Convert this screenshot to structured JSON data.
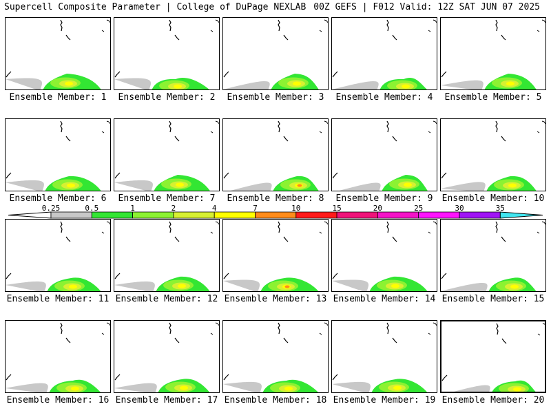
{
  "header": {
    "left": "Supercell Composite Parameter | College of DuPage NEXLAB",
    "right": "00Z GEFS | F012 Valid: 12Z SAT JUN 07 2025"
  },
  "colorbar": {
    "labels": [
      "0.25",
      "0.5",
      "1",
      "2",
      "4",
      "7",
      "10",
      "15",
      "20",
      "25",
      "30",
      "35"
    ],
    "colors": [
      "#c8c8c8",
      "#33e633",
      "#8cf232",
      "#d7f032",
      "#ffff00",
      "#ff8c1a",
      "#ff1a1a",
      "#f0147a",
      "#f514c8",
      "#ff14ff",
      "#a014f5",
      "#b45ae6",
      "#40e6f0"
    ]
  },
  "members": [
    {
      "label": "Ensemble Member: 1",
      "hot": false,
      "selected": false
    },
    {
      "label": "Ensemble Member: 2",
      "hot": false,
      "selected": false
    },
    {
      "label": "Ensemble Member: 3",
      "hot": false,
      "selected": false
    },
    {
      "label": "Ensemble Member: 4",
      "hot": false,
      "selected": false
    },
    {
      "label": "Ensemble Member: 5",
      "hot": false,
      "selected": false
    },
    {
      "label": "Ensemble Member: 6",
      "hot": false,
      "selected": false
    },
    {
      "label": "Ensemble Member: 7",
      "hot": false,
      "selected": false
    },
    {
      "label": "Ensemble Member: 8",
      "hot": true,
      "selected": false
    },
    {
      "label": "Ensemble Member: 9",
      "hot": false,
      "selected": false
    },
    {
      "label": "Ensemble Member: 10",
      "hot": false,
      "selected": false
    },
    {
      "label": "Ensemble Member: 11",
      "hot": false,
      "selected": false
    },
    {
      "label": "Ensemble Member: 12",
      "hot": false,
      "selected": false
    },
    {
      "label": "Ensemble Member: 13",
      "hot": true,
      "selected": false
    },
    {
      "label": "Ensemble Member: 14",
      "hot": false,
      "selected": false
    },
    {
      "label": "Ensemble Member: 15",
      "hot": false,
      "selected": false
    },
    {
      "label": "Ensemble Member: 16",
      "hot": false,
      "selected": false
    },
    {
      "label": "Ensemble Member: 17",
      "hot": false,
      "selected": false
    },
    {
      "label": "Ensemble Member: 18",
      "hot": false,
      "selected": false
    },
    {
      "label": "Ensemble Member: 19",
      "hot": false,
      "selected": false
    },
    {
      "label": "Ensemble Member: 20",
      "hot": false,
      "selected": true
    }
  ]
}
